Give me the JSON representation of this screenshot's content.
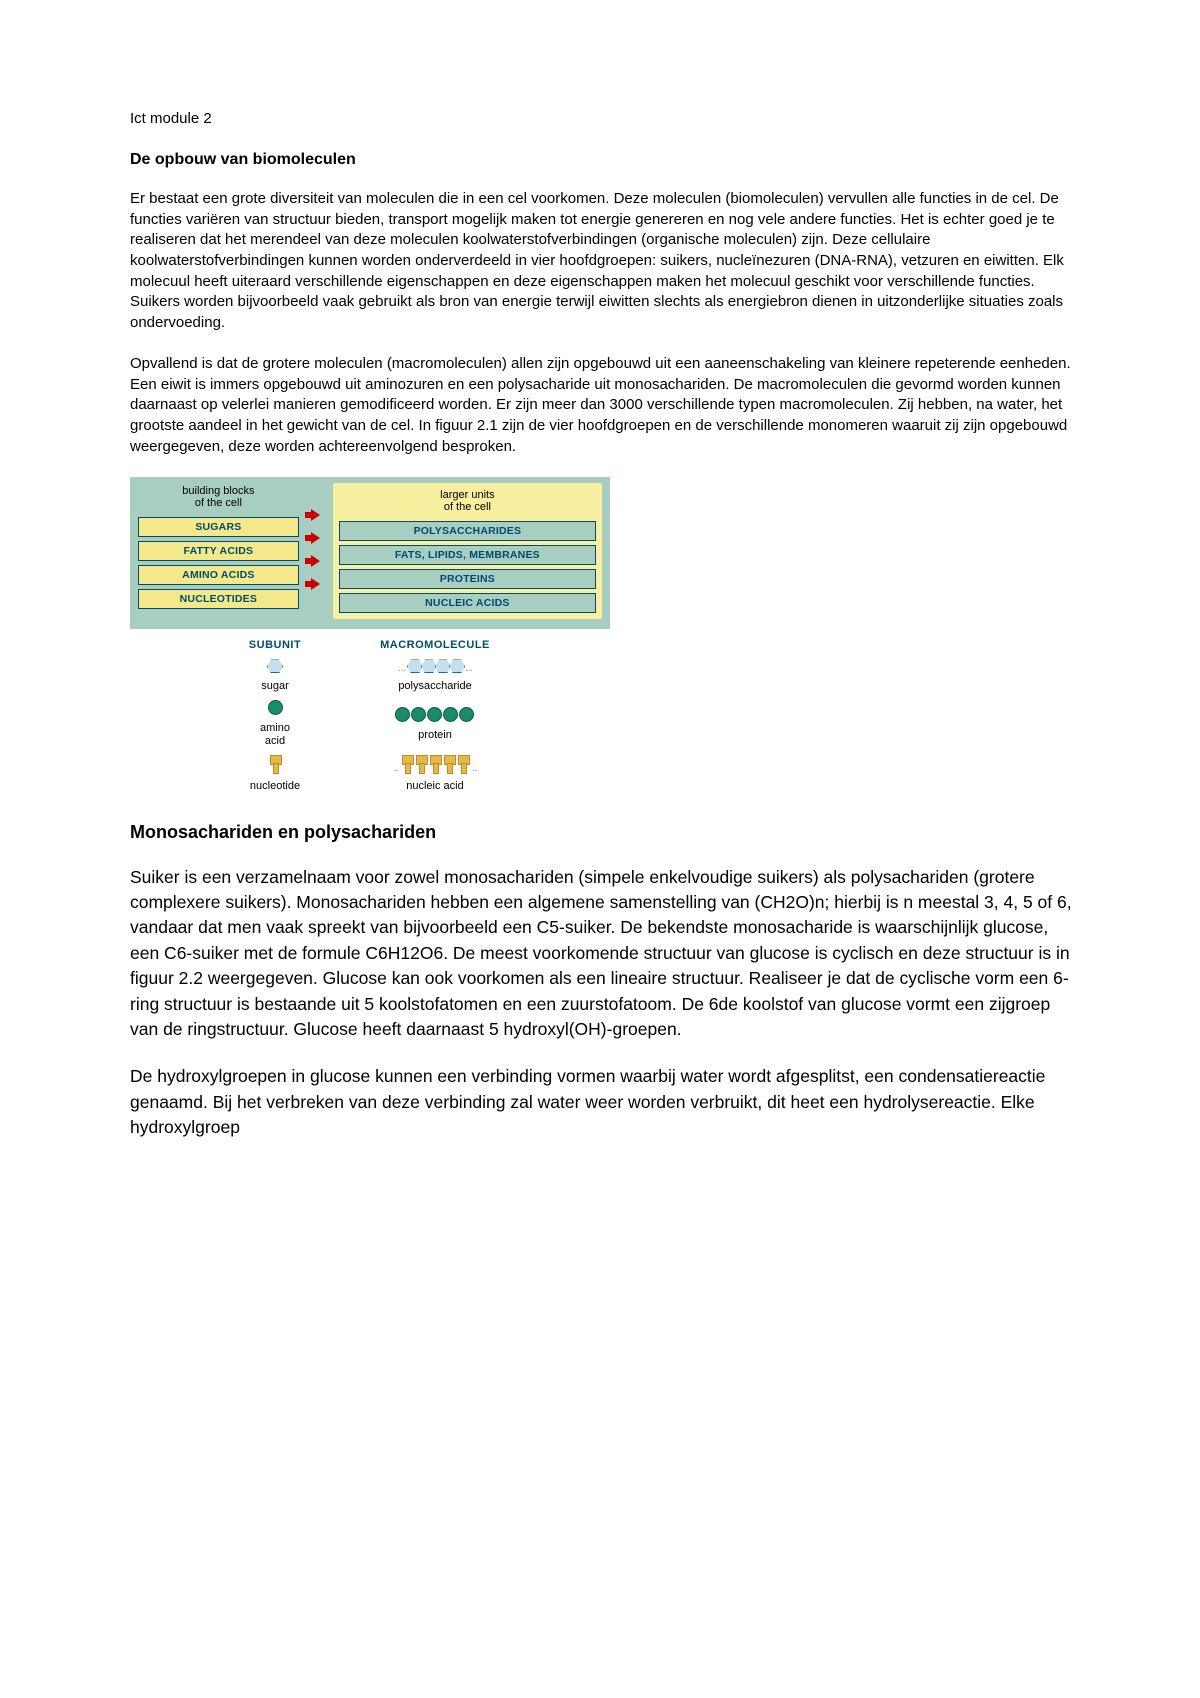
{
  "module_label": "Ict module 2",
  "heading_main": "De opbouw van biomoleculen",
  "para_1": "Er bestaat een grote diversiteit van moleculen die in een cel voorkomen. Deze moleculen (biomoleculen) vervullen alle functies in de cel. De functies variëren van structuur bieden, transport mogelijk maken tot energie genereren en nog vele andere functies. Het is echter goed je te realiseren dat het merendeel van deze moleculen koolwaterstofverbindingen (organische moleculen) zijn. Deze cellulaire koolwaterstofverbindingen kunnen worden onderverdeeld in vier hoofdgroepen: suikers, nucleïnezuren (DNA-RNA), vetzuren en eiwitten. Elk molecuul heeft uiteraard verschillende eigenschappen en deze eigenschappen maken het molecuul geschikt voor verschillende functies. Suikers worden bijvoorbeeld vaak gebruikt als bron van energie terwijl eiwitten slechts als energiebron dienen in uitzonderlijke situaties zoals ondervoeding.",
  "para_2": "Opvallend is dat de grotere moleculen (macromoleculen) allen zijn opgebouwd uit een aaneenschakeling van kleinere repeterende eenheden. Een eiwit is immers opgebouwd uit aminozuren en een polysacharide uit monosachariden. De macromoleculen die gevormd worden kunnen daarnaast op velerlei manieren gemodificeerd worden. Er zijn meer dan 3000 verschillende typen macromoleculen. Zij hebben, na water, het grootste aandeel in het gewicht van de cel. In figuur 2.1 zijn de vier hoofdgroepen en de verschillende monomeren waaruit zij zijn opgebouwd weergegeven, deze worden achtereenvolgend besproken.",
  "heading_2": "Monosachariden en polysachariden",
  "para_3": "Suiker is een verzamelnaam voor zowel monosachariden (simpele enkelvoudige suikers) als polysachariden (grotere complexere suikers). Monosachariden hebben een algemene samenstelling van (CH2O)n; hierbij is n meestal 3, 4, 5 of 6, vandaar dat men vaak spreekt van bijvoorbeeld een C5-suiker. De bekendste monosacharide is waarschijnlijk glucose, een C6-suiker met de formule C6H12O6. De meest voorkomende structuur van glucose is cyclisch en deze structuur is in figuur 2.2 weergegeven. Glucose kan ook voorkomen als een lineaire structuur. Realiseer je dat de cyclische vorm een 6-ring structuur is bestaande uit 5 koolstofatomen en een zuurstofatoom. De 6de koolstof van glucose vormt een zijgroep van de ringstructuur. Glucose heeft daarnaast 5 hydroxyl(OH)-groepen.",
  "para_4": "De hydroxylgroepen in glucose kunnen een verbinding vormen waarbij water wordt afgesplitst, een condensatiereactie genaamd. Bij het verbreken van deze verbinding zal water weer worden verbruikt, dit heet een hydrolysereactie. Elke hydroxylgroep",
  "diagram": {
    "top": {
      "left_header_l1": "building blocks",
      "left_header_l2": "of the cell",
      "right_header_l1": "larger units",
      "right_header_l2": "of the cell",
      "rows": [
        {
          "left": "SUGARS",
          "right": "POLYSACCHARIDES"
        },
        {
          "left": "FATTY ACIDS",
          "right": "FATS, LIPIDS, MEMBRANES"
        },
        {
          "left": "AMINO ACIDS",
          "right": "PROTEINS"
        },
        {
          "left": "NUCLEOTIDES",
          "right": "NUCLEIC ACIDS"
        }
      ],
      "colors": {
        "panel_bg": "#a8cec2",
        "right_panel_bg": "#f8f0a0",
        "cell_bg": "#f4e98a",
        "cell_blue_bg": "#a8cec2",
        "cell_border": "#004b6b",
        "arrow_color": "#cc0000"
      }
    },
    "bottom": {
      "header_left": "SUBUNIT",
      "header_right": "MACROMOLECULE",
      "rows": [
        {
          "subunit": "sugar",
          "macro": "polysaccharide",
          "shape": "hex",
          "color_fill": "#c5e0ec",
          "color_border": "#1a6b8c",
          "chain_count": 4
        },
        {
          "subunit": "amino acid",
          "macro": "protein",
          "shape": "circle",
          "color_fill": "#1a8c6b",
          "color_border": "#0a5c44",
          "chain_count": 5
        },
        {
          "subunit": "nucleotide",
          "macro": "nucleic acid",
          "shape": "nucleotide",
          "color_fill": "#e6b84a",
          "color_border": "#b8902a",
          "chain_count": 5
        }
      ]
    }
  }
}
